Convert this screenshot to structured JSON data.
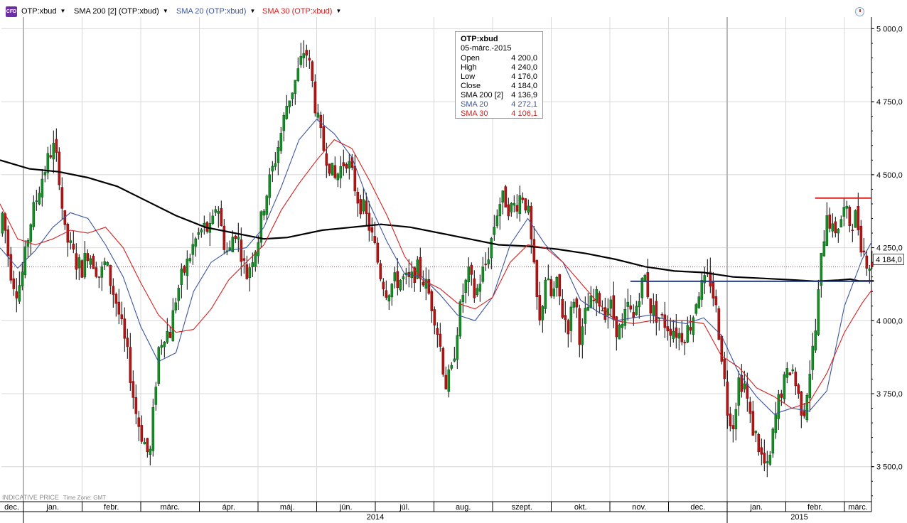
{
  "header": {
    "logo": "CFD",
    "legend": [
      {
        "label": "OTP:xbud",
        "color": "#000000"
      },
      {
        "label": "SMA 200 [2] (OTP:xbud)",
        "color": "#000000"
      },
      {
        "label": "SMA 20 (OTP:xbud)",
        "color": "#3a55a0"
      },
      {
        "label": "SMA 30 (OTP:xbud)",
        "color": "#d42020"
      }
    ],
    "clock_icon": "clock-icon"
  },
  "tooltip": {
    "symbol": "OTP:xbud",
    "date": "05-márc.-2015",
    "rows": [
      {
        "label": "Open",
        "value": "4 200,0",
        "color": "#000000"
      },
      {
        "label": "High",
        "value": "4 240,0",
        "color": "#000000"
      },
      {
        "label": "Low",
        "value": "4 176,0",
        "color": "#000000"
      },
      {
        "label": "Close",
        "value": "4 184,0",
        "color": "#000000"
      },
      {
        "label": "SMA 200 [2]",
        "value": "4 136,9",
        "color": "#000000"
      },
      {
        "label": "SMA 20",
        "value": "4 272,1",
        "color": "#3a55a0"
      },
      {
        "label": "SMA 30",
        "value": "4 106,1",
        "color": "#d42020"
      }
    ]
  },
  "last_price_label": "4 184,0",
  "footer": {
    "indicative": "INDICATIVE PRICE",
    "timezone": "Time Zone: GMT"
  },
  "chart_data": {
    "type": "candlestick",
    "instrument": "OTP:xbud",
    "ylim": [
      3380,
      5040
    ],
    "yticks": [
      3500,
      3750,
      4000,
      4250,
      4500,
      4750,
      5000
    ],
    "ytick_labels": [
      "3 500,0",
      "3 750,0",
      "4 000,0",
      "4 250,0",
      "4 500,0",
      "4 750,0",
      "5 000,0"
    ],
    "x_months": [
      {
        "label": "dec.",
        "start": 0,
        "end": 0.4
      },
      {
        "label": "jan.",
        "start": 0.4,
        "end": 1.4
      },
      {
        "label": "febr.",
        "start": 1.4,
        "end": 2.4
      },
      {
        "label": "márc.",
        "start": 2.4,
        "end": 3.4
      },
      {
        "label": "ápr.",
        "start": 3.4,
        "end": 4.4
      },
      {
        "label": "máj.",
        "start": 4.4,
        "end": 5.4
      },
      {
        "label": "jún.",
        "start": 5.4,
        "end": 6.4
      },
      {
        "label": "júl.",
        "start": 6.4,
        "end": 7.4
      },
      {
        "label": "aug.",
        "start": 7.4,
        "end": 8.4
      },
      {
        "label": "szept.",
        "start": 8.4,
        "end": 9.4
      },
      {
        "label": "okt.",
        "start": 9.4,
        "end": 10.4
      },
      {
        "label": "nov.",
        "start": 10.4,
        "end": 11.4
      },
      {
        "label": "dec.",
        "start": 11.4,
        "end": 12.4
      },
      {
        "label": "jan.",
        "start": 12.4,
        "end": 13.4
      },
      {
        "label": "febr.",
        "start": 13.4,
        "end": 14.4
      },
      {
        "label": "márc.",
        "start": 14.4,
        "end": 14.9
      }
    ],
    "x_years": [
      {
        "label": "2014",
        "start": 0.4,
        "end": 12.4
      },
      {
        "label": "2015",
        "start": 12.4,
        "end": 14.9
      }
    ],
    "year_separators": [
      0.4,
      12.4
    ],
    "price_anchors": [
      [
        0,
        4300
      ],
      [
        0.05,
        4380
      ],
      [
        0.12,
        4250
      ],
      [
        0.2,
        4150
      ],
      [
        0.3,
        4100
      ],
      [
        0.4,
        4180
      ],
      [
        0.5,
        4320
      ],
      [
        0.6,
        4400
      ],
      [
        0.7,
        4480
      ],
      [
        0.8,
        4540
      ],
      [
        0.9,
        4600
      ],
      [
        1.0,
        4520
      ],
      [
        1.1,
        4300
      ],
      [
        1.2,
        4250
      ],
      [
        1.3,
        4200
      ],
      [
        1.4,
        4180
      ],
      [
        1.5,
        4240
      ],
      [
        1.6,
        4200
      ],
      [
        1.7,
        4150
      ],
      [
        1.8,
        4200
      ],
      [
        1.9,
        4120
      ],
      [
        2.0,
        4050
      ],
      [
        2.1,
        3950
      ],
      [
        2.2,
        3850
      ],
      [
        2.3,
        3700
      ],
      [
        2.4,
        3620
      ],
      [
        2.5,
        3560
      ],
      [
        2.55,
        3520
      ],
      [
        2.6,
        3650
      ],
      [
        2.7,
        3900
      ],
      [
        2.8,
        3960
      ],
      [
        2.9,
        3960
      ],
      [
        3.0,
        4080
      ],
      [
        3.1,
        4150
      ],
      [
        3.2,
        4200
      ],
      [
        3.3,
        4260
      ],
      [
        3.4,
        4300
      ],
      [
        3.5,
        4320
      ],
      [
        3.6,
        4300
      ],
      [
        3.7,
        4420
      ],
      [
        3.8,
        4280
      ],
      [
        3.9,
        4220
      ],
      [
        4.0,
        4320
      ],
      [
        4.1,
        4250
      ],
      [
        4.2,
        4150
      ],
      [
        4.3,
        4220
      ],
      [
        4.4,
        4280
      ],
      [
        4.5,
        4400
      ],
      [
        4.6,
        4480
      ],
      [
        4.7,
        4560
      ],
      [
        4.8,
        4650
      ],
      [
        4.9,
        4750
      ],
      [
        5.0,
        4800
      ],
      [
        5.1,
        4860
      ],
      [
        5.2,
        4940
      ],
      [
        5.3,
        4850
      ],
      [
        5.4,
        4700
      ],
      [
        5.5,
        4600
      ],
      [
        5.6,
        4550
      ],
      [
        5.7,
        4480
      ],
      [
        5.8,
        4520
      ],
      [
        5.9,
        4560
      ],
      [
        6.0,
        4500
      ],
      [
        6.1,
        4420
      ],
      [
        6.2,
        4380
      ],
      [
        6.3,
        4320
      ],
      [
        6.4,
        4240
      ],
      [
        6.5,
        4150
      ],
      [
        6.6,
        4100
      ],
      [
        6.7,
        4130
      ],
      [
        6.8,
        4140
      ],
      [
        6.9,
        4140
      ],
      [
        7.0,
        4130
      ],
      [
        7.1,
        4180
      ],
      [
        7.2,
        4150
      ],
      [
        7.3,
        4100
      ],
      [
        7.4,
        4030
      ],
      [
        7.5,
        3920
      ],
      [
        7.6,
        3780
      ],
      [
        7.7,
        3820
      ],
      [
        7.8,
        3980
      ],
      [
        7.9,
        4100
      ],
      [
        8.0,
        4160
      ],
      [
        8.1,
        4080
      ],
      [
        8.2,
        4150
      ],
      [
        8.3,
        4200
      ],
      [
        8.4,
        4300
      ],
      [
        8.5,
        4400
      ],
      [
        8.6,
        4420
      ],
      [
        8.7,
        4380
      ],
      [
        8.8,
        4400
      ],
      [
        8.9,
        4440
      ],
      [
        9.0,
        4380
      ],
      [
        9.1,
        4180
      ],
      [
        9.2,
        3980
      ],
      [
        9.3,
        4150
      ],
      [
        9.4,
        4080
      ],
      [
        9.5,
        4120
      ],
      [
        9.6,
        4020
      ],
      [
        9.7,
        3980
      ],
      [
        9.8,
        4100
      ],
      [
        9.9,
        3920
      ],
      [
        10.0,
        4040
      ],
      [
        10.1,
        4060
      ],
      [
        10.2,
        4080
      ],
      [
        10.3,
        4030
      ],
      [
        10.4,
        4060
      ],
      [
        10.5,
        3980
      ],
      [
        10.6,
        3960
      ],
      [
        10.7,
        4050
      ],
      [
        10.8,
        4000
      ],
      [
        10.9,
        4100
      ],
      [
        11.0,
        4150
      ],
      [
        11.1,
        4040
      ],
      [
        11.2,
        4020
      ],
      [
        11.3,
        4000
      ],
      [
        11.4,
        3980
      ],
      [
        11.5,
        3970
      ],
      [
        11.6,
        3950
      ],
      [
        11.7,
        3960
      ],
      [
        11.8,
        4000
      ],
      [
        11.9,
        4100
      ],
      [
        12.0,
        4120
      ],
      [
        12.1,
        4150
      ],
      [
        12.2,
        4050
      ],
      [
        12.3,
        3900
      ],
      [
        12.4,
        3700
      ],
      [
        12.5,
        3650
      ],
      [
        12.6,
        3800
      ],
      [
        12.7,
        3780
      ],
      [
        12.8,
        3650
      ],
      [
        12.9,
        3600
      ],
      [
        13.0,
        3520
      ],
      [
        13.1,
        3480
      ],
      [
        13.2,
        3640
      ],
      [
        13.3,
        3750
      ],
      [
        13.4,
        3800
      ],
      [
        13.5,
        3850
      ],
      [
        13.6,
        3750
      ],
      [
        13.7,
        3680
      ],
      [
        13.8,
        3820
      ],
      [
        13.9,
        3950
      ],
      [
        14.0,
        4200
      ],
      [
        14.1,
        4380
      ],
      [
        14.2,
        4300
      ],
      [
        14.3,
        4330
      ],
      [
        14.4,
        4380
      ],
      [
        14.5,
        4330
      ],
      [
        14.6,
        4360
      ],
      [
        14.7,
        4250
      ],
      [
        14.8,
        4200
      ],
      [
        14.87,
        4184
      ]
    ],
    "last_candle": {
      "date": "05-márc.-2015",
      "open": 4200,
      "high": 4240,
      "low": 4176,
      "close": 4184
    },
    "series": [
      {
        "name": "SMA 200 [2]",
        "color": "#000000",
        "points": [
          [
            0,
            4550
          ],
          [
            0.5,
            4520
          ],
          [
            1.0,
            4510
          ],
          [
            1.5,
            4490
          ],
          [
            2.0,
            4460
          ],
          [
            2.5,
            4410
          ],
          [
            3.0,
            4360
          ],
          [
            3.5,
            4320
          ],
          [
            4.0,
            4300
          ],
          [
            4.5,
            4280
          ],
          [
            4.9,
            4285
          ],
          [
            5.5,
            4310
          ],
          [
            6.0,
            4320
          ],
          [
            6.5,
            4330
          ],
          [
            7.0,
            4320
          ],
          [
            7.5,
            4300
          ],
          [
            8.0,
            4280
          ],
          [
            8.5,
            4260
          ],
          [
            9.0,
            4255
          ],
          [
            9.5,
            4245
          ],
          [
            10.0,
            4230
          ],
          [
            10.5,
            4210
          ],
          [
            11.0,
            4185
          ],
          [
            11.5,
            4170
          ],
          [
            12.0,
            4165
          ],
          [
            12.5,
            4150
          ],
          [
            13.0,
            4145
          ],
          [
            13.5,
            4140
          ],
          [
            13.9,
            4135
          ],
          [
            14.3,
            4139
          ],
          [
            14.5,
            4142
          ],
          [
            14.65,
            4136
          ],
          [
            14.9,
            4136
          ]
        ]
      },
      {
        "name": "SMA 20",
        "color": "#3a55a0",
        "points": [
          [
            0,
            4250
          ],
          [
            0.3,
            4180
          ],
          [
            0.6,
            4240
          ],
          [
            0.9,
            4320
          ],
          [
            1.2,
            4370
          ],
          [
            1.5,
            4350
          ],
          [
            1.8,
            4260
          ],
          [
            2.1,
            4150
          ],
          [
            2.4,
            3980
          ],
          [
            2.7,
            3860
          ],
          [
            3.0,
            3890
          ],
          [
            3.3,
            4100
          ],
          [
            3.6,
            4200
          ],
          [
            3.9,
            4240
          ],
          [
            4.2,
            4250
          ],
          [
            4.5,
            4320
          ],
          [
            4.8,
            4460
          ],
          [
            5.1,
            4620
          ],
          [
            5.4,
            4690
          ],
          [
            5.7,
            4640
          ],
          [
            6.0,
            4560
          ],
          [
            6.3,
            4400
          ],
          [
            6.6,
            4270
          ],
          [
            6.9,
            4160
          ],
          [
            7.2,
            4150
          ],
          [
            7.5,
            4090
          ],
          [
            7.8,
            4020
          ],
          [
            8.1,
            4000
          ],
          [
            8.4,
            4080
          ],
          [
            8.7,
            4260
          ],
          [
            9.0,
            4350
          ],
          [
            9.3,
            4260
          ],
          [
            9.6,
            4200
          ],
          [
            9.9,
            4070
          ],
          [
            10.2,
            4030
          ],
          [
            10.5,
            4000
          ],
          [
            10.8,
            4010
          ],
          [
            11.1,
            4020
          ],
          [
            11.4,
            4000
          ],
          [
            11.7,
            3990
          ],
          [
            12.0,
            4010
          ],
          [
            12.3,
            3950
          ],
          [
            12.6,
            3820
          ],
          [
            12.9,
            3740
          ],
          [
            13.2,
            3680
          ],
          [
            13.5,
            3700
          ],
          [
            13.8,
            3690
          ],
          [
            14.1,
            3760
          ],
          [
            14.4,
            4050
          ],
          [
            14.7,
            4210
          ],
          [
            14.87,
            4272
          ]
        ]
      },
      {
        "name": "SMA 30",
        "color": "#d42020",
        "points": [
          [
            0,
            4400
          ],
          [
            0.3,
            4280
          ],
          [
            0.6,
            4260
          ],
          [
            0.9,
            4280
          ],
          [
            1.2,
            4310
          ],
          [
            1.5,
            4300
          ],
          [
            1.8,
            4320
          ],
          [
            2.1,
            4250
          ],
          [
            2.4,
            4130
          ],
          [
            2.7,
            4020
          ],
          [
            3.0,
            3960
          ],
          [
            3.3,
            3970
          ],
          [
            3.6,
            4040
          ],
          [
            3.9,
            4140
          ],
          [
            4.2,
            4200
          ],
          [
            4.5,
            4260
          ],
          [
            4.8,
            4380
          ],
          [
            5.1,
            4470
          ],
          [
            5.4,
            4550
          ],
          [
            5.7,
            4620
          ],
          [
            6.0,
            4590
          ],
          [
            6.3,
            4480
          ],
          [
            6.6,
            4360
          ],
          [
            6.9,
            4220
          ],
          [
            7.2,
            4140
          ],
          [
            7.5,
            4110
          ],
          [
            7.8,
            4060
          ],
          [
            8.1,
            4040
          ],
          [
            8.4,
            4080
          ],
          [
            8.7,
            4200
          ],
          [
            9.0,
            4260
          ],
          [
            9.3,
            4250
          ],
          [
            9.6,
            4200
          ],
          [
            9.9,
            4130
          ],
          [
            10.2,
            4060
          ],
          [
            10.5,
            4000
          ],
          [
            10.8,
            3990
          ],
          [
            11.1,
            4000
          ],
          [
            11.4,
            4000
          ],
          [
            11.7,
            4000
          ],
          [
            12.0,
            3990
          ],
          [
            12.3,
            3880
          ],
          [
            12.6,
            3840
          ],
          [
            12.9,
            3770
          ],
          [
            13.2,
            3740
          ],
          [
            13.5,
            3700
          ],
          [
            13.8,
            3720
          ],
          [
            14.1,
            3820
          ],
          [
            14.4,
            3960
          ],
          [
            14.7,
            4060
          ],
          [
            14.87,
            4106
          ]
        ]
      }
    ],
    "annotations": [
      {
        "type": "hline",
        "color": "#d42020",
        "x_start": 13.9,
        "x_end": 14.9,
        "y": 4420
      },
      {
        "type": "hline",
        "color": "#2a3f8f",
        "x_start": 10.75,
        "x_end": 14.9,
        "y": 4135
      }
    ],
    "grid": true,
    "legend_position": "top-left"
  }
}
